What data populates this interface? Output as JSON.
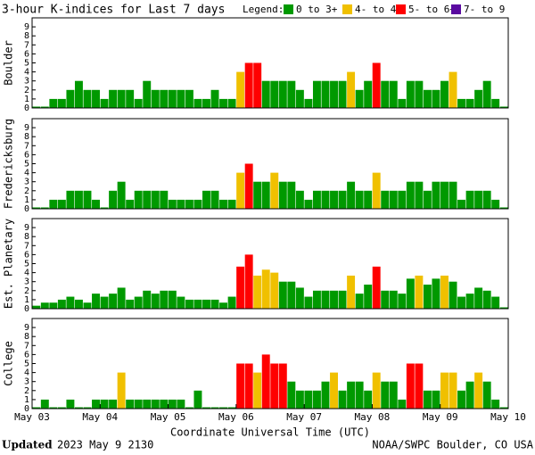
{
  "title": "3-hour K-indices for Last 7 days",
  "legend_title": "Legend:",
  "legend": [
    {
      "label": "0 to 3+",
      "color": "#009900",
      "min": 0
    },
    {
      "label": "4- to 4+",
      "color": "#f0c000",
      "min": 3.67
    },
    {
      "label": "5- to 6+",
      "color": "#ff0000",
      "min": 4.67
    },
    {
      "label": "7- to 9",
      "color": "#5a0aa0",
      "min": 6.67
    }
  ],
  "x_axis_label": "Coordinate Universal Time (UTC)",
  "footer": {
    "updated_label": "Updated",
    "updated_time": "2023 May  9 2130",
    "source": "NOAA/SWPC Boulder, CO USA"
  },
  "chart_data": [
    {
      "type": "bar",
      "ylabel": "Boulder",
      "ylim": [
        0,
        10
      ],
      "yticks": [
        0,
        1,
        2,
        3,
        4,
        5,
        6,
        7,
        8,
        9
      ],
      "values": [
        0,
        0,
        1,
        1,
        2,
        3,
        2,
        2,
        1,
        2,
        2,
        2,
        1,
        3,
        2,
        2,
        2,
        2,
        2,
        1,
        1,
        2,
        1,
        1,
        4,
        5,
        5,
        3,
        3,
        3,
        3,
        2,
        1,
        3,
        3,
        3,
        3,
        4,
        2,
        3,
        5,
        3,
        3,
        1,
        3,
        3,
        2,
        2,
        3,
        4,
        1,
        1,
        2,
        3,
        1,
        0
      ]
    },
    {
      "type": "bar",
      "ylabel": "Fredericksburg",
      "ylim": [
        0,
        10
      ],
      "yticks": [
        0,
        1,
        2,
        3,
        4,
        5,
        6,
        7,
        8,
        9
      ],
      "values": [
        0,
        0,
        1,
        1,
        2,
        2,
        2,
        1,
        0,
        2,
        3,
        1,
        2,
        2,
        2,
        2,
        1,
        1,
        1,
        1,
        2,
        2,
        1,
        1,
        4,
        5,
        3,
        3,
        4,
        3,
        3,
        2,
        1,
        2,
        2,
        2,
        2,
        3,
        2,
        2,
        4,
        2,
        2,
        2,
        3,
        3,
        2,
        3,
        3,
        3,
        1,
        2,
        2,
        2,
        1,
        0
      ]
    },
    {
      "type": "bar",
      "ylabel": "Est. Planetary",
      "ylim": [
        0,
        10
      ],
      "yticks": [
        0,
        1,
        2,
        3,
        4,
        5,
        6,
        7,
        8,
        9
      ],
      "values": [
        0.33,
        0.67,
        0.67,
        1,
        1.33,
        1,
        0.67,
        1.67,
        1.33,
        1.67,
        2.33,
        1,
        1.33,
        2,
        1.67,
        2,
        2,
        1.33,
        1,
        1,
        1,
        1,
        0.67,
        1.33,
        4.67,
        6,
        3.67,
        4.33,
        4,
        3,
        3,
        2.33,
        1.33,
        2,
        2,
        2,
        2,
        3.67,
        1.67,
        2.67,
        4.67,
        2,
        2,
        1.67,
        3.33,
        3.67,
        2.67,
        3.33,
        3.67,
        3,
        1.33,
        1.67,
        2.33,
        2,
        1.33,
        0
      ]
    },
    {
      "type": "bar",
      "ylabel": "College",
      "ylim": [
        0,
        10
      ],
      "yticks": [
        0,
        1,
        2,
        3,
        4,
        5,
        6,
        7,
        8,
        9
      ],
      "values": [
        0,
        1,
        0,
        0,
        1,
        0,
        0,
        1,
        1,
        1,
        4,
        1,
        1,
        1,
        1,
        1,
        1,
        1,
        0,
        2,
        0,
        0,
        0,
        0,
        5,
        5,
        4,
        6,
        5,
        5,
        3,
        2,
        2,
        2,
        3,
        4,
        2,
        3,
        3,
        2,
        4,
        3,
        3,
        1,
        5,
        5,
        2,
        2,
        4,
        4,
        2,
        3,
        4,
        3,
        1,
        0
      ],
      "xlim": [
        0,
        7
      ],
      "xticks": [
        {
          "value": 0,
          "label": "May 03"
        },
        {
          "value": 1,
          "label": "May 04"
        },
        {
          "value": 2,
          "label": "May 05"
        },
        {
          "value": 3,
          "label": "May 06"
        },
        {
          "value": 4,
          "label": "May 07"
        },
        {
          "value": 5,
          "label": "May 08"
        },
        {
          "value": 6,
          "label": "May 09"
        },
        {
          "value": 7,
          "label": "May 10"
        }
      ]
    }
  ]
}
